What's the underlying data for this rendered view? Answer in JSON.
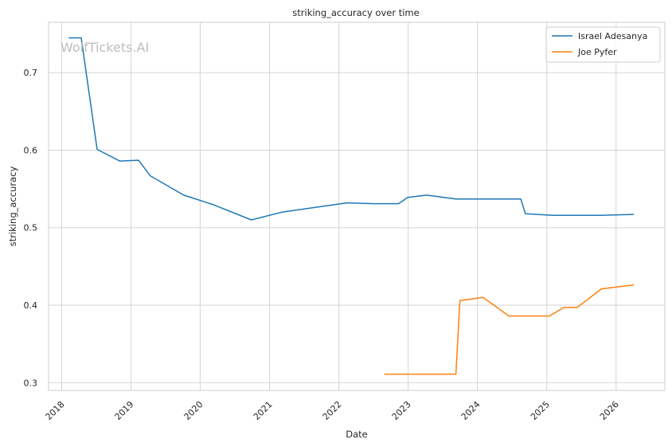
{
  "chart_data": {
    "type": "line",
    "title": "striking_accuracy over time",
    "xlabel": "Date",
    "ylabel": "striking_accuracy",
    "watermark": "WolfTickets.AI",
    "x_ticks": [
      "2018",
      "2019",
      "2020",
      "2021",
      "2022",
      "2023",
      "2024",
      "2025",
      "2026"
    ],
    "y_ticks": [
      "0.3",
      "0.4",
      "0.5",
      "0.6",
      "0.7"
    ],
    "xlim": [
      "2017-10-24",
      "2026-09-15"
    ],
    "ylim": [
      0.29,
      0.765
    ],
    "grid": true,
    "legend_position": "top-right",
    "series": [
      {
        "name": "Israel Adesanya",
        "color": "#1f77b4",
        "points": [
          [
            "2018-02-10",
            0.745
          ],
          [
            "2018-04-14",
            0.745
          ],
          [
            "2018-07-07",
            0.601
          ],
          [
            "2018-11-03",
            0.586
          ],
          [
            "2019-02-10",
            0.587
          ],
          [
            "2019-04-13",
            0.567
          ],
          [
            "2019-10-06",
            0.542
          ],
          [
            "2020-03-07",
            0.53
          ],
          [
            "2020-09-27",
            0.51
          ],
          [
            "2021-03-06",
            0.52
          ],
          [
            "2022-02-12",
            0.532
          ],
          [
            "2022-07-02",
            0.531
          ],
          [
            "2022-11-12",
            0.531
          ],
          [
            "2022-12-30",
            0.539
          ],
          [
            "2023-04-08",
            0.542
          ],
          [
            "2023-09-10",
            0.537
          ],
          [
            "2024-08-17",
            0.537
          ],
          [
            "2024-09-10",
            0.518
          ],
          [
            "2025-02-01",
            0.516
          ],
          [
            "2025-10-15",
            0.516
          ],
          [
            "2026-04-01",
            0.517
          ]
        ]
      },
      {
        "name": "Joe Pyfer",
        "color": "#ff7f0e",
        "points": [
          [
            "2022-09-01",
            0.311
          ],
          [
            "2023-06-10",
            0.311
          ],
          [
            "2023-09-10",
            0.311
          ],
          [
            "2023-10-01",
            0.406
          ],
          [
            "2024-02-01",
            0.41
          ],
          [
            "2024-06-15",
            0.386
          ],
          [
            "2025-01-15",
            0.386
          ],
          [
            "2025-04-01",
            0.397
          ],
          [
            "2025-06-10",
            0.397
          ],
          [
            "2025-10-15",
            0.421
          ],
          [
            "2026-04-01",
            0.426
          ]
        ]
      }
    ]
  }
}
